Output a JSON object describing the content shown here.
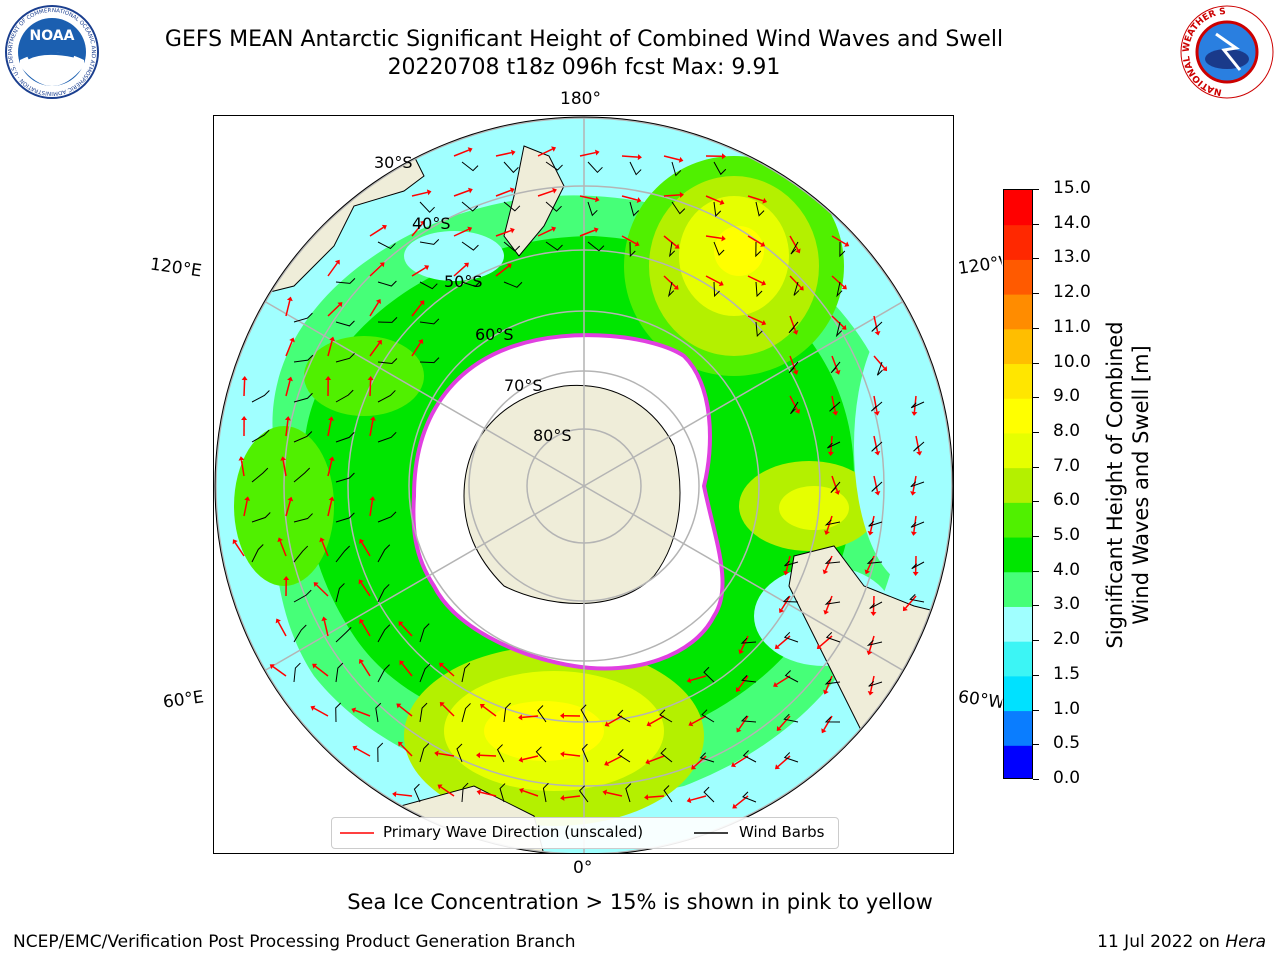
{
  "title": {
    "line1": "GEFS MEAN Antarctic Significant Height of Combined Wind Waves and Swell",
    "line2": "20220708 t18z 096h fcst   Max: 9.91"
  },
  "logos": {
    "left": {
      "text": "NOAA",
      "ring": "NATIONAL OCEANIC AND ATMOSPHERIC ADMINISTRATION · U.S. DEPARTMENT OF COMMERCE"
    },
    "right": {
      "ring": "NATIONAL WEATHER SERVICE"
    }
  },
  "map": {
    "longitude_labels": {
      "top": "180°",
      "bottom": "0°",
      "left_upper": "120°E",
      "left_lower": "60°E",
      "right_upper": "120°W",
      "right_lower": "60°W"
    },
    "latitude_labels": [
      "30°S",
      "40°S",
      "50°S",
      "60°S",
      "70°S",
      "80°S"
    ],
    "colors": {
      "land": "#efedd9",
      "ice": "#ffffff",
      "coast": "#000000",
      "grid": "#b4b4b4",
      "ice_edge": "#e040e0"
    }
  },
  "colorbar": {
    "label_line1": "Significant Height of Combined",
    "label_line2": "Wind Waves and Swell [m]",
    "ticks": [
      "0.0",
      "0.5",
      "1.0",
      "1.5",
      "2.0",
      "3.0",
      "4.0",
      "5.0",
      "6.0",
      "7.0",
      "8.0",
      "9.0",
      "10.0",
      "11.0",
      "12.0",
      "13.0",
      "14.0",
      "15.0"
    ],
    "colors": [
      "#0000ff",
      "#0a7dff",
      "#00e1ff",
      "#3cf5f5",
      "#a0ffff",
      "#46ff78",
      "#00e600",
      "#50f000",
      "#b4f000",
      "#e6ff00",
      "#ffff00",
      "#ffe600",
      "#ffbe00",
      "#ff8c00",
      "#ff5a00",
      "#ff2800",
      "#ff0000"
    ]
  },
  "legend": {
    "wave_label": "Primary Wave Direction (unscaled)",
    "barb_label": "Wind Barbs",
    "wave_color": "#ff0000",
    "barb_color": "#000000"
  },
  "ice_note": "Sea Ice Concentration > 15% is shown in pink to yellow",
  "footer": {
    "left": "NCEP/EMC/Verification Post Processing Product Generation Branch",
    "right_date": "11 Jul 2022 on ",
    "right_host": "Hera"
  }
}
